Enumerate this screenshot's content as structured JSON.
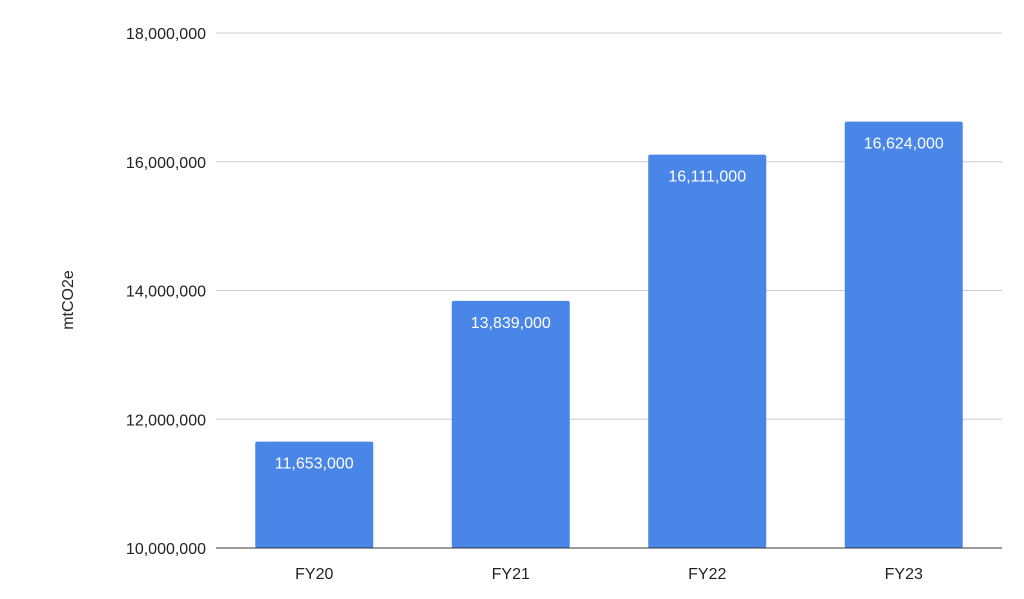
{
  "chart_data": {
    "type": "bar",
    "title": "",
    "xlabel": "",
    "ylabel": "mtCO2e",
    "categories": [
      "FY20",
      "FY21",
      "FY22",
      "FY23"
    ],
    "values": [
      11653000,
      13839000,
      16111000,
      16624000
    ],
    "data_labels": [
      "11,653,000",
      "13,839,000",
      "16,111,000",
      "16,624,000"
    ],
    "ylim": [
      10000000,
      18000000
    ],
    "yticks": [
      10000000,
      12000000,
      14000000,
      16000000,
      18000000
    ],
    "ytick_labels": [
      "10,000,000",
      "12,000,000",
      "14,000,000",
      "16,000,000",
      "18,000,000"
    ],
    "grid": true,
    "legend": "none",
    "bar_color": "#4a86e8"
  }
}
